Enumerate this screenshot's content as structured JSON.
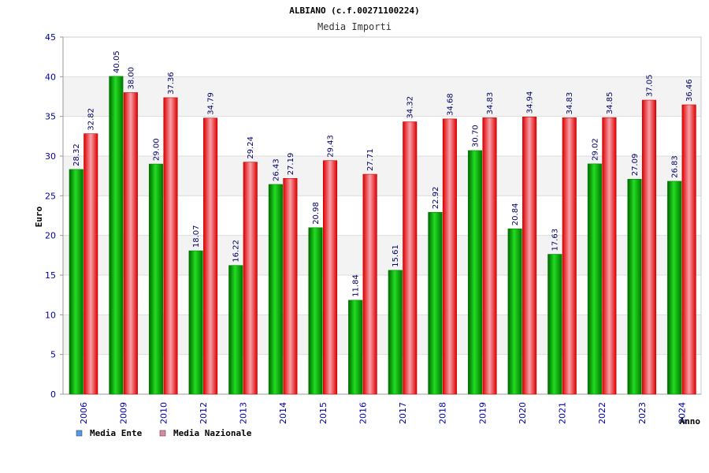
{
  "chart_data": {
    "type": "bar",
    "title": "ALBIANO (c.f.00271100224)",
    "subtitle": "Media Importi",
    "xlabel": "Anno",
    "ylabel": "Euro",
    "ylim": [
      0,
      45
    ],
    "yticks": [
      "0",
      "5",
      "10",
      "15",
      "20",
      "25",
      "30",
      "35",
      "40",
      "45"
    ],
    "grid": true,
    "legend_position": "bottom-left",
    "categories": [
      "2006",
      "2009",
      "2010",
      "2012",
      "2013",
      "2014",
      "2015",
      "2016",
      "2017",
      "2018",
      "2019",
      "2020",
      "2021",
      "2022",
      "2023",
      "2024"
    ],
    "series": [
      {
        "name": "Media Ente",
        "color": "#00b400",
        "legend_color": "#5599ee",
        "values": [
          28.32,
          40.05,
          29.0,
          18.07,
          16.22,
          26.43,
          20.98,
          11.84,
          15.61,
          22.92,
          30.7,
          20.84,
          17.63,
          29.02,
          27.09,
          26.83
        ],
        "labels": [
          "28.32",
          "40.05",
          "29.00",
          "18.07",
          "16.22",
          "26.43",
          "20.98",
          "11.84",
          "15.61",
          "22.92",
          "30.70",
          "20.84",
          "17.63",
          "29.02",
          "27.09",
          "26.83"
        ]
      },
      {
        "name": "Media Nazionale",
        "color": "#ee1c24",
        "legend_color": "#dd88aa",
        "values": [
          32.82,
          38.0,
          37.36,
          34.79,
          29.24,
          27.19,
          29.43,
          27.71,
          34.32,
          34.68,
          34.83,
          34.94,
          34.83,
          34.85,
          37.05,
          36.46
        ],
        "labels": [
          "32.82",
          "38.00",
          "37.36",
          "34.79",
          "29.24",
          "27.19",
          "29.43",
          "27.71",
          "34.32",
          "34.68",
          "34.83",
          "34.94",
          "34.83",
          "34.85",
          "37.05",
          "36.46"
        ]
      }
    ]
  }
}
